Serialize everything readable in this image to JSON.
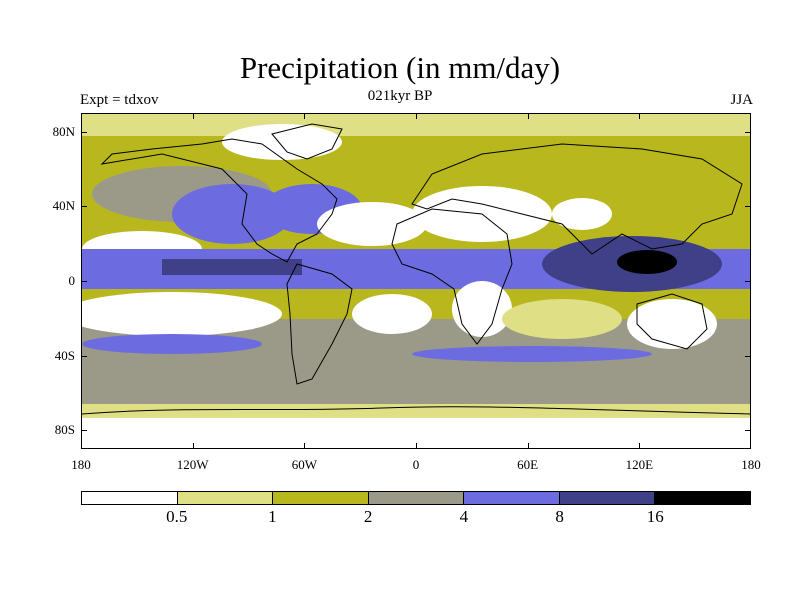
{
  "title": "Precipitation (in mm/day)",
  "experiment": "Expt = tdxov",
  "period": "021kyr BP",
  "season": "JJA",
  "y_axis": {
    "ticks": [
      {
        "label": "80N",
        "lat": 80
      },
      {
        "label": "40N",
        "lat": 40
      },
      {
        "label": "0",
        "lat": 0
      },
      {
        "label": "40S",
        "lat": -40
      },
      {
        "label": "80S",
        "lat": -80
      }
    ]
  },
  "x_axis": {
    "ticks": [
      {
        "label": "180",
        "lon": -180
      },
      {
        "label": "120W",
        "lon": -120
      },
      {
        "label": "60W",
        "lon": -60
      },
      {
        "label": "0",
        "lon": 0
      },
      {
        "label": "60E",
        "lon": 60
      },
      {
        "label": "120E",
        "lon": 120
      },
      {
        "label": "180",
        "lon": 180
      }
    ]
  },
  "colorbar": {
    "colors": [
      "#ffffff",
      "#dfdf85",
      "#b8b81e",
      "#9b9a88",
      "#6c6ce0",
      "#404088",
      "#000000"
    ],
    "levels": [
      "0.5",
      "1",
      "2",
      "4",
      "8",
      "16"
    ]
  },
  "map": {
    "lon_range": [
      -180,
      180
    ],
    "lat_range": [
      -90,
      90
    ],
    "background_color": "#b8b81e"
  }
}
